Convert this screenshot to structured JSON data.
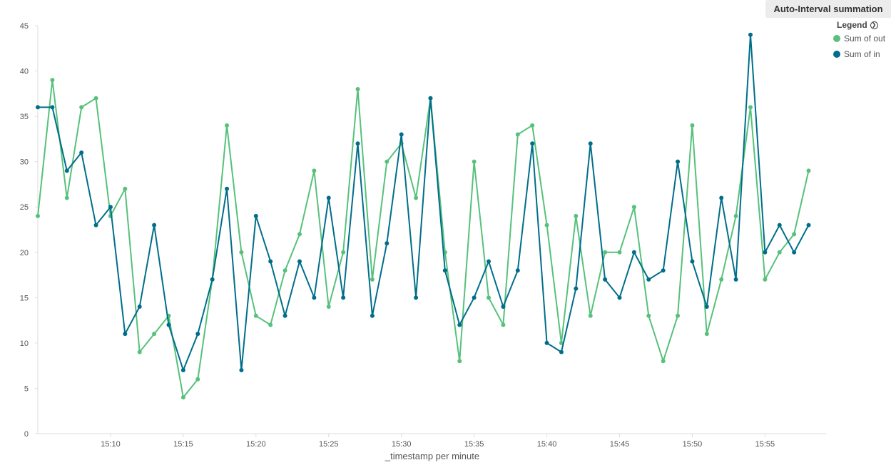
{
  "header": {
    "badge_label": "Auto-Interval summation"
  },
  "legend": {
    "title": "Legend",
    "items": [
      {
        "label": "Sum of out",
        "color": "#57c17b"
      },
      {
        "label": "Sum of in",
        "color": "#006e8a"
      }
    ]
  },
  "chart_data": {
    "type": "line",
    "xlabel": "_timestamp per minute",
    "ylabel": "",
    "x_unit": "minutes past 15:00",
    "xlim": [
      5,
      59.2
    ],
    "ylim": [
      0,
      45
    ],
    "yticks": [
      0,
      5,
      10,
      15,
      20,
      25,
      30,
      35,
      40,
      45
    ],
    "xticks": [
      {
        "value": 10,
        "label": "15:10"
      },
      {
        "value": 15,
        "label": "15:15"
      },
      {
        "value": 20,
        "label": "15:20"
      },
      {
        "value": 25,
        "label": "15:25"
      },
      {
        "value": 30,
        "label": "15:30"
      },
      {
        "value": 35,
        "label": "15:35"
      },
      {
        "value": 40,
        "label": "15:40"
      },
      {
        "value": 45,
        "label": "15:45"
      },
      {
        "value": 50,
        "label": "15:50"
      },
      {
        "value": 55,
        "label": "15:55"
      }
    ],
    "x": [
      5,
      6,
      7,
      8,
      9,
      10,
      11,
      12,
      13,
      14,
      15,
      16,
      17,
      18,
      19,
      20,
      21,
      22,
      23,
      24,
      25,
      26,
      27,
      28,
      29,
      30,
      31,
      32,
      33,
      34,
      35,
      36,
      37,
      38,
      39,
      40,
      41,
      42,
      43,
      44,
      45,
      46,
      47,
      48,
      49,
      50,
      51,
      52,
      53,
      54,
      55,
      56,
      57,
      58
    ],
    "series": [
      {
        "name": "Sum of out",
        "color": "#57c17b",
        "values": [
          24,
          39,
          26,
          36,
          37,
          24,
          27,
          9,
          11,
          13,
          4,
          6,
          17,
          34,
          20,
          13,
          12,
          18,
          22,
          29,
          14,
          20,
          38,
          17,
          30,
          32,
          26,
          37,
          20,
          8,
          30,
          15,
          12,
          33,
          34,
          23,
          10,
          24,
          13,
          20,
          20,
          25,
          13,
          8,
          13,
          34,
          11,
          17,
          24,
          36,
          17,
          20,
          22,
          29
        ]
      },
      {
        "name": "Sum of in",
        "color": "#006e8a",
        "values": [
          36,
          36,
          29,
          31,
          23,
          25,
          11,
          14,
          23,
          12,
          7,
          11,
          17,
          27,
          7,
          24,
          19,
          13,
          19,
          15,
          26,
          15,
          32,
          13,
          21,
          33,
          15,
          37,
          18,
          12,
          15,
          19,
          14,
          18,
          32,
          10,
          9,
          16,
          32,
          17,
          15,
          20,
          17,
          18,
          30,
          19,
          14,
          26,
          17,
          44,
          20,
          23,
          20,
          23
        ]
      }
    ]
  }
}
